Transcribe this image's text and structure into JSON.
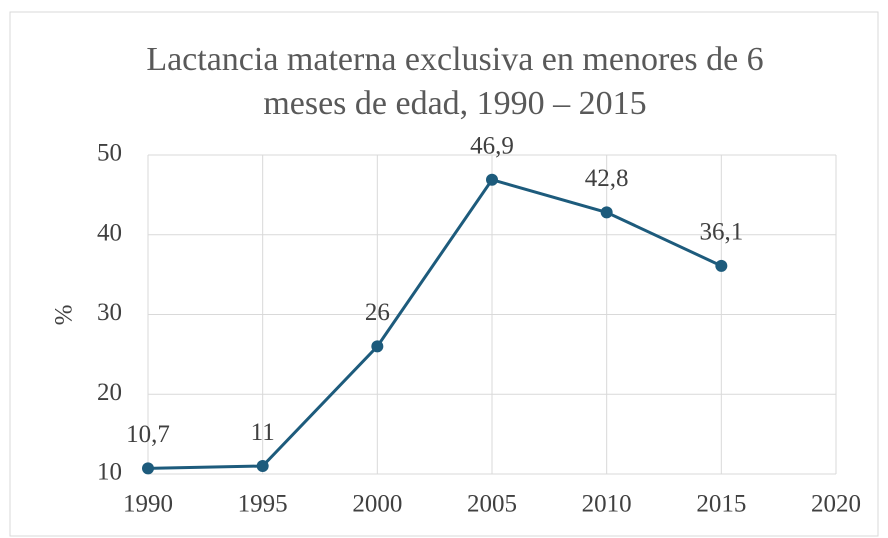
{
  "chart_data": {
    "type": "line",
    "title": "Lactancia materna exclusiva en menores de 6 meses de edad, 1990 – 2015",
    "y_label": "%",
    "x": [
      1990,
      1995,
      2000,
      2005,
      2010,
      2015
    ],
    "series": [
      {
        "name": "Lactancia materna exclusiva",
        "color": "#1d5b7c",
        "values": [
          10.7,
          11,
          26,
          46.9,
          42.8,
          36.1
        ],
        "value_labels": [
          "10,7",
          "11",
          "26",
          "46,9",
          "42,8",
          "36,1"
        ]
      }
    ],
    "xlim": [
      1990,
      2020
    ],
    "xticks": [
      1990,
      1995,
      2000,
      2005,
      2010,
      2015,
      2020
    ],
    "ylim": [
      10,
      50
    ],
    "yticks": [
      10,
      20,
      30,
      40,
      50
    ],
    "grid": true
  }
}
